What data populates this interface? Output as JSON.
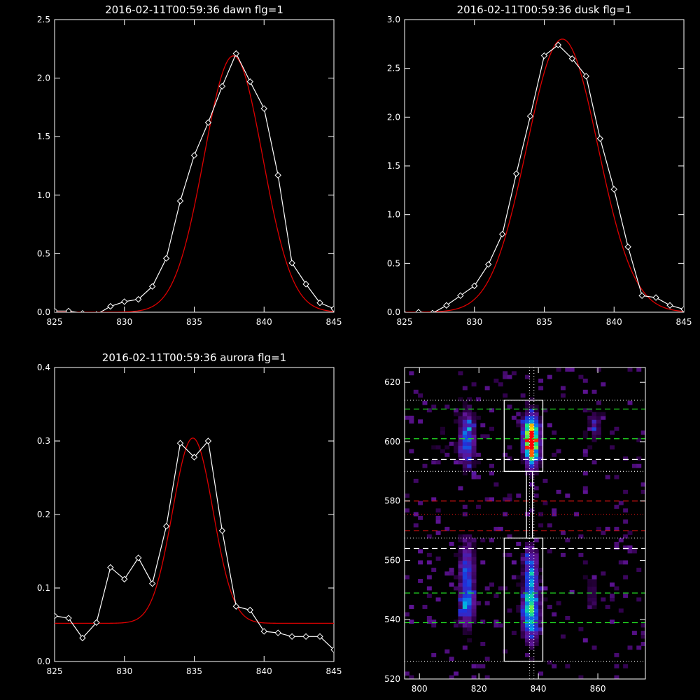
{
  "colors": {
    "background": "#000000",
    "axes": "#ffffff",
    "data": "#ffffff",
    "fit": "#dd0000",
    "green_dash": "#22dd22",
    "red_dash": "#cc1111",
    "white_dash": "#ffffff"
  },
  "chart_data": [
    {
      "type": "line",
      "title": "2016-02-11T00:59:36 dawn flg=1",
      "xlim": [
        825,
        845
      ],
      "ylim": [
        0,
        2.5
      ],
      "xticks": [
        825,
        830,
        835,
        840,
        845
      ],
      "yticks": [
        0.0,
        0.5,
        1.0,
        1.5,
        2.0,
        2.5
      ],
      "ytick_labels": [
        "0.0",
        "0.5",
        "1.0",
        "1.5",
        "2.0",
        "2.5"
      ],
      "series": [
        {
          "kind": "data",
          "marker": "diamond",
          "x": [
            825,
            826,
            827,
            828,
            829,
            830,
            831,
            832,
            833,
            834,
            835,
            836,
            837,
            838,
            839,
            840,
            841,
            842,
            843,
            844,
            845
          ],
          "y": [
            0.01,
            0.01,
            -0.01,
            -0.02,
            0.05,
            0.09,
            0.11,
            0.22,
            0.46,
            0.95,
            1.34,
            1.62,
            1.93,
            2.21,
            1.97,
            1.74,
            1.17,
            0.42,
            0.24,
            0.08,
            0.03
          ]
        },
        {
          "kind": "fit",
          "gaussian": {
            "amplitude": 2.19,
            "center": 837.8,
            "sigma": 2.1,
            "offset": 0.0
          }
        }
      ]
    },
    {
      "type": "line",
      "title": "2016-02-11T00:59:36 dusk flg=1",
      "xlim": [
        825,
        845
      ],
      "ylim": [
        0,
        3
      ],
      "xticks": [
        825,
        830,
        835,
        840,
        845
      ],
      "yticks": [
        0.0,
        0.5,
        1.0,
        1.5,
        2.0,
        2.5,
        3.0
      ],
      "ytick_labels": [
        "0.0",
        "0.5",
        "1.0",
        "1.5",
        "2.0",
        "2.5",
        "3.0"
      ],
      "series": [
        {
          "kind": "data",
          "marker": "diamond",
          "x": [
            825,
            826,
            827,
            828,
            829,
            830,
            831,
            832,
            833,
            834,
            835,
            836,
            837,
            838,
            839,
            840,
            841,
            842,
            843,
            844,
            845
          ],
          "y": [
            -0.02,
            0.0,
            -0.01,
            0.07,
            0.17,
            0.27,
            0.49,
            0.8,
            1.42,
            2.01,
            2.63,
            2.74,
            2.6,
            2.42,
            1.78,
            1.26,
            0.67,
            0.17,
            0.15,
            0.07,
            0.03
          ]
        },
        {
          "kind": "fit",
          "gaussian": {
            "amplitude": 2.8,
            "center": 836.3,
            "sigma": 2.55,
            "offset": 0.0
          }
        }
      ]
    },
    {
      "type": "line",
      "title": "2016-02-11T00:59:36 aurora flg=1",
      "xlim": [
        825,
        845
      ],
      "ylim": [
        0,
        0.4
      ],
      "xticks": [
        825,
        830,
        835,
        840,
        845
      ],
      "yticks": [
        0.0,
        0.1,
        0.2,
        0.3,
        0.4
      ],
      "ytick_labels": [
        "0.0",
        "0.1",
        "0.2",
        "0.3",
        "0.4"
      ],
      "series": [
        {
          "kind": "data",
          "marker": "diamond",
          "x": [
            825,
            826,
            827,
            828,
            829,
            830,
            831,
            832,
            833,
            834,
            835,
            836,
            837,
            838,
            839,
            840,
            841,
            842,
            843,
            844,
            845
          ],
          "y": [
            0.062,
            0.059,
            0.032,
            0.053,
            0.128,
            0.112,
            0.141,
            0.106,
            0.184,
            0.297,
            0.278,
            0.3,
            0.178,
            0.075,
            0.07,
            0.041,
            0.039,
            0.034,
            0.034,
            0.034,
            0.016
          ]
        },
        {
          "kind": "fit",
          "gaussian": {
            "amplitude": 0.252,
            "center": 834.9,
            "sigma": 1.45,
            "offset": 0.052
          }
        }
      ]
    },
    {
      "type": "heatmap",
      "title": "",
      "xlim": [
        795,
        876
      ],
      "ylim": [
        520,
        625
      ],
      "xticks": [
        800,
        820,
        840,
        860
      ],
      "yticks": [
        520,
        540,
        560,
        580,
        600,
        620
      ],
      "blobs": [
        {
          "x": 837.5,
          "y": 602,
          "sx": 1.7,
          "sy": 4.5,
          "amp": 1.0
        },
        {
          "x": 838,
          "y": 597,
          "sx": 1.5,
          "sy": 5,
          "amp": 0.42
        },
        {
          "x": 837.5,
          "y": 545,
          "sx": 1.7,
          "sy": 4.5,
          "amp": 0.68
        },
        {
          "x": 837.5,
          "y": 557,
          "sx": 1.5,
          "sy": 5,
          "amp": 0.45
        },
        {
          "x": 837.5,
          "y": 537,
          "sx": 2.0,
          "sy": 4,
          "amp": 0.26
        },
        {
          "x": 816,
          "y": 601,
          "sx": 1.7,
          "sy": 6,
          "amp": 0.42
        },
        {
          "x": 816,
          "y": 557,
          "sx": 1.7,
          "sy": 6,
          "amp": 0.35
        },
        {
          "x": 816,
          "y": 545,
          "sx": 1.7,
          "sy": 5,
          "amp": 0.38
        },
        {
          "x": 859,
          "y": 605,
          "sx": 1.5,
          "sy": 4,
          "amp": 0.16
        },
        {
          "x": 858,
          "y": 549,
          "sx": 1.5,
          "sy": 4,
          "amp": 0.12
        },
        {
          "x": 807,
          "y": 600,
          "sx": 1.5,
          "sy": 3,
          "amp": 0.05
        }
      ],
      "boxes": [
        {
          "x": [
            828.5,
            841.5
          ],
          "y": [
            590,
            614
          ]
        },
        {
          "x": [
            828.5,
            841.5
          ],
          "y": [
            526,
            567.5
          ]
        }
      ],
      "connector": {
        "x": [
          836,
          838
        ],
        "y": [
          567.5,
          590
        ]
      },
      "green_dashed_y": [
        611,
        601,
        549,
        539
      ],
      "white_dashed_y": [
        594,
        564
      ],
      "red_dashed_y": [
        580,
        570
      ],
      "white_dotted_y": [
        614,
        590,
        567.5,
        526
      ],
      "red_dotted_y": [
        575.5
      ],
      "vertical_dotted_x": [
        837,
        838.5
      ]
    }
  ]
}
